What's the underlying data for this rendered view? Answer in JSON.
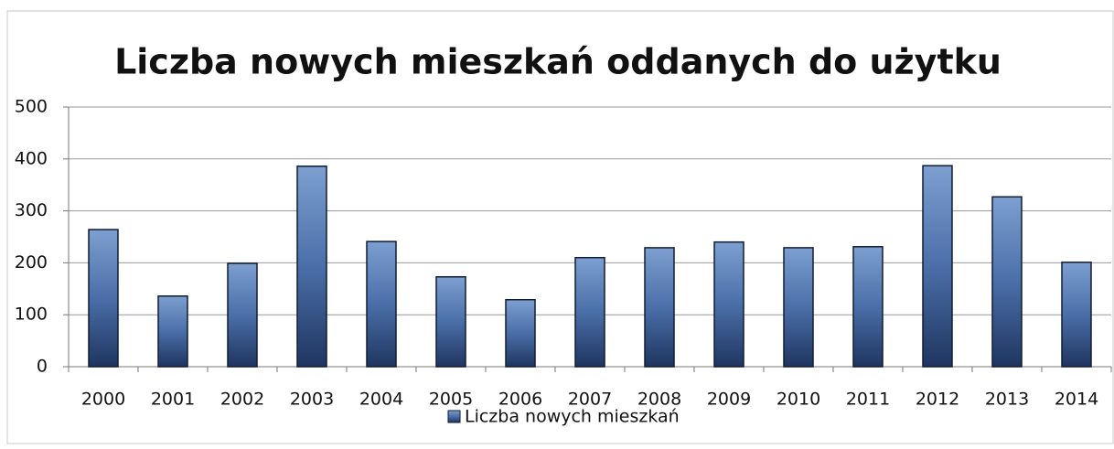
{
  "chart_data": {
    "type": "bar",
    "title": "Liczba nowych mieszkań oddanych do użytku",
    "categories": [
      "2000",
      "2001",
      "2002",
      "2003",
      "2004",
      "2005",
      "2006",
      "2007",
      "2008",
      "2009",
      "2010",
      "2011",
      "2012",
      "2013",
      "2014"
    ],
    "series": [
      {
        "name": "Liczba nowych mieszkań",
        "color": "#4a6fa8",
        "values": [
          264,
          136,
          199,
          386,
          241,
          173,
          129,
          210,
          229,
          240,
          229,
          231,
          387,
          327,
          201
        ]
      }
    ],
    "ylim": [
      0,
      500
    ],
    "yticks": [
      0,
      100,
      200,
      300,
      400,
      500
    ],
    "grid": true,
    "legend": "bottom"
  }
}
